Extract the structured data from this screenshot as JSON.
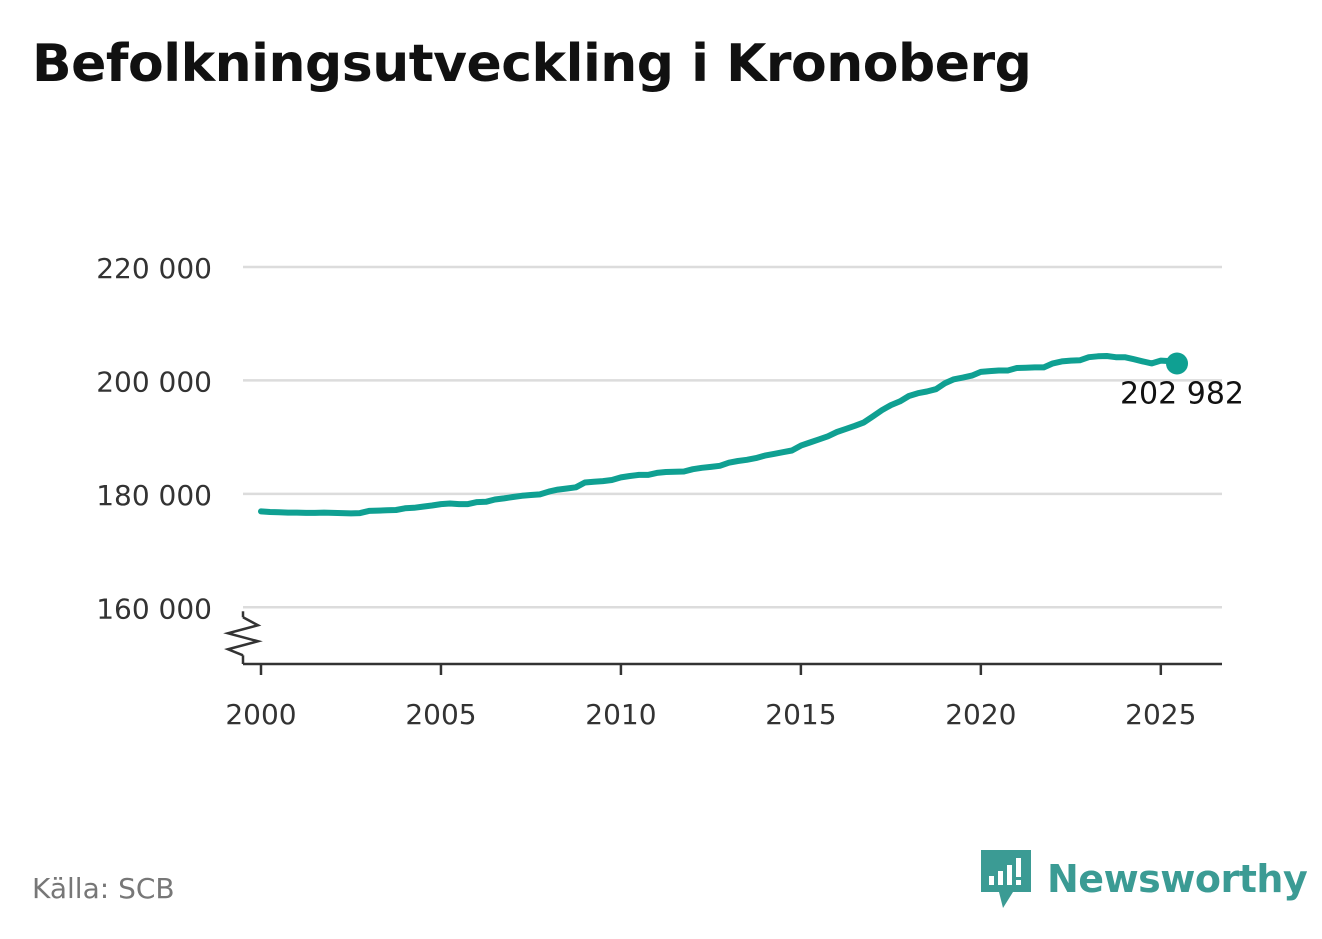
{
  "title": "Befolkningsutveckling i Kronoberg",
  "source": "Källa: SCB",
  "brand": {
    "name": "Newsworthy",
    "logo_icon": "newsworthy-chat-bars-icon",
    "color": "#3b9b94"
  },
  "colors": {
    "line": "#0fa092",
    "grid": "#dcdcdc",
    "axis": "#333333",
    "tick_text": "#333333"
  },
  "chart_data": {
    "type": "line",
    "title": "Befolkningsutveckling i Kronoberg",
    "xlabel": "",
    "ylabel": "",
    "xlim": [
      1999.5,
      2026.7
    ],
    "ylim": [
      150000,
      220000
    ],
    "y_axis_broken": true,
    "grid": "horizontal",
    "x_ticks": [
      2000,
      2005,
      2010,
      2015,
      2020,
      2025
    ],
    "x_tick_labels": [
      "2000",
      "2005",
      "2010",
      "2015",
      "2020",
      "2025"
    ],
    "y_ticks": [
      160000,
      180000,
      200000,
      220000
    ],
    "y_tick_labels": [
      "160 000",
      "180 000",
      "200 000",
      "220 000"
    ],
    "series": [
      {
        "x": [
          2000.0,
          2000.25,
          2000.5,
          2000.75,
          2001.0,
          2001.25,
          2001.5,
          2001.75,
          2002.0,
          2002.25,
          2002.5,
          2002.75,
          2003.0,
          2003.25,
          2003.5,
          2003.75,
          2004.0,
          2004.25,
          2004.5,
          2004.75,
          2005.0,
          2005.25,
          2005.5,
          2005.75,
          2006.0,
          2006.25,
          2006.5,
          2006.75,
          2007.0,
          2007.25,
          2007.5,
          2007.75,
          2008.0,
          2008.25,
          2008.5,
          2008.75,
          2009.0,
          2009.25,
          2009.5,
          2009.75,
          2010.0,
          2010.25,
          2010.5,
          2010.75,
          2011.0,
          2011.25,
          2011.5,
          2011.75,
          2012.0,
          2012.25,
          2012.5,
          2012.75,
          2013.0,
          2013.25,
          2013.5,
          2013.75,
          2014.0,
          2014.25,
          2014.5,
          2014.75,
          2015.0,
          2015.25,
          2015.5,
          2015.75,
          2016.0,
          2016.25,
          2016.5,
          2016.75,
          2017.0,
          2017.25,
          2017.5,
          2017.75,
          2018.0,
          2018.25,
          2018.5,
          2018.75,
          2019.0,
          2019.25,
          2019.5,
          2019.75,
          2020.0,
          2020.25,
          2020.5,
          2020.75,
          2021.0,
          2021.25,
          2021.5,
          2021.75,
          2022.0,
          2022.25,
          2022.5,
          2022.75,
          2023.0,
          2023.25,
          2023.5,
          2023.75,
          2024.0,
          2024.25,
          2024.5,
          2024.75,
          2025.0,
          2025.25,
          2025.45
        ],
        "y": [
          176900,
          176800,
          176750,
          176700,
          176700,
          176650,
          176650,
          176700,
          176650,
          176600,
          176550,
          176600,
          177000,
          177050,
          177100,
          177150,
          177450,
          177550,
          177750,
          177950,
          178200,
          178300,
          178200,
          178200,
          178550,
          178600,
          179000,
          179200,
          179450,
          179650,
          179800,
          179900,
          180400,
          180750,
          180950,
          181150,
          182000,
          182150,
          182250,
          182450,
          182900,
          183150,
          183350,
          183350,
          183700,
          183850,
          183900,
          183950,
          184350,
          184600,
          184750,
          184950,
          185500,
          185800,
          186000,
          186300,
          186750,
          187050,
          187350,
          187650,
          188500,
          189050,
          189600,
          190150,
          190900,
          191450,
          192000,
          192600,
          193650,
          194750,
          195650,
          196300,
          197250,
          197750,
          198050,
          198450,
          199500,
          200200,
          200500,
          200850,
          201500,
          201650,
          201750,
          201750,
          202200,
          202250,
          202300,
          202300,
          203000,
          203350,
          203500,
          203550,
          204100,
          204250,
          204300,
          204100,
          204100,
          203750,
          203350,
          203000,
          203500,
          203400,
          202982
        ]
      }
    ],
    "end_label": {
      "x": 2025.45,
      "y": 202982,
      "text": "202 982"
    }
  }
}
